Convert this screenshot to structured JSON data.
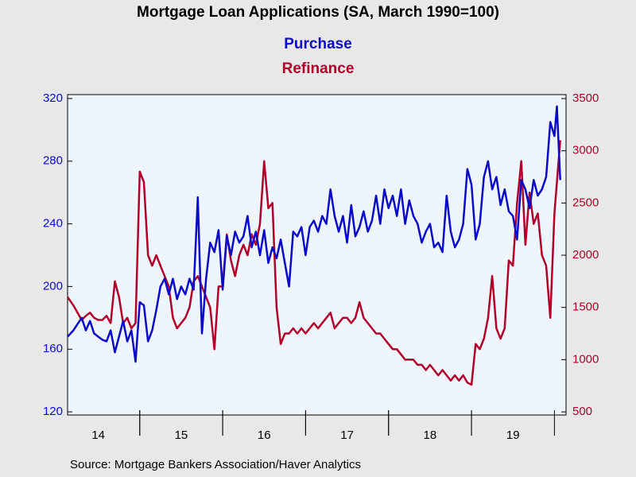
{
  "chart_data": {
    "type": "line",
    "title": "Mortgage Loan Applications (SA, March 1990=100)",
    "source": "Source:  Mortgage Bankers Association/Haver Analytics",
    "x": [
      2014.13,
      2014.2,
      2014.25,
      2014.3,
      2014.35,
      2014.4,
      2014.45,
      2014.5,
      2014.55,
      2014.6,
      2014.65,
      2014.7,
      2014.75,
      2014.8,
      2014.85,
      2014.9,
      2014.95,
      2015.0,
      2015.05,
      2015.1,
      2015.15,
      2015.2,
      2015.25,
      2015.3,
      2015.35,
      2015.4,
      2015.45,
      2015.5,
      2015.55,
      2015.6,
      2015.65,
      2015.7,
      2015.75,
      2015.8,
      2015.85,
      2015.9,
      2015.95,
      2016.0,
      2016.05,
      2016.1,
      2016.15,
      2016.2,
      2016.25,
      2016.3,
      2016.35,
      2016.4,
      2016.45,
      2016.5,
      2016.55,
      2016.6,
      2016.65,
      2016.7,
      2016.75,
      2016.8,
      2016.85,
      2016.9,
      2016.95,
      2017.0,
      2017.05,
      2017.1,
      2017.15,
      2017.2,
      2017.25,
      2017.3,
      2017.35,
      2017.4,
      2017.45,
      2017.5,
      2017.55,
      2017.6,
      2017.65,
      2017.7,
      2017.75,
      2017.8,
      2017.85,
      2017.9,
      2017.95,
      2018.0,
      2018.05,
      2018.1,
      2018.15,
      2018.2,
      2018.25,
      2018.3,
      2018.35,
      2018.4,
      2018.45,
      2018.5,
      2018.55,
      2018.6,
      2018.65,
      2018.7,
      2018.75,
      2018.8,
      2018.85,
      2018.9,
      2018.95,
      2019.0,
      2019.05,
      2019.1,
      2019.15,
      2019.2,
      2019.25,
      2019.3,
      2019.35,
      2019.4,
      2019.45,
      2019.5,
      2019.55,
      2019.6,
      2019.65,
      2019.7,
      2019.75,
      2019.8,
      2019.85,
      2019.9,
      2019.95,
      2020.0,
      2020.03,
      2020.07
    ],
    "series": [
      {
        "name": "Purchase",
        "color": "#0a0ac8",
        "values": [
          168,
          172,
          176,
          180,
          172,
          178,
          170,
          168,
          166,
          165,
          172,
          158,
          168,
          178,
          165,
          172,
          152,
          190,
          188,
          165,
          172,
          185,
          200,
          205,
          195,
          205,
          192,
          200,
          195,
          205,
          198,
          257,
          170,
          205,
          228,
          222,
          236,
          198,
          232,
          220,
          235,
          228,
          232,
          245,
          225,
          235,
          220,
          236,
          215,
          225,
          218,
          230,
          215,
          200,
          235,
          232,
          238,
          220,
          238,
          242,
          235,
          245,
          240,
          262,
          245,
          235,
          245,
          228,
          252,
          232,
          238,
          248,
          235,
          242,
          258,
          240,
          262,
          250,
          258,
          245,
          262,
          240,
          255,
          245,
          240,
          228,
          235,
          240,
          225,
          228,
          222,
          258,
          235,
          225,
          230,
          240,
          275,
          265,
          230,
          240,
          270,
          280,
          262,
          270,
          252,
          262,
          248,
          245,
          230,
          268,
          262,
          250,
          268,
          258,
          262,
          270,
          305,
          296,
          315,
          268
        ]
      },
      {
        "name": "Refinance",
        "color": "#b0002a",
        "axis": "y2",
        "values": [
          1600,
          1520,
          1450,
          1380,
          1420,
          1450,
          1400,
          1380,
          1380,
          1420,
          1350,
          1750,
          1600,
          1350,
          1400,
          1300,
          1350,
          2800,
          2700,
          2000,
          1900,
          2000,
          1900,
          1800,
          1700,
          1400,
          1300,
          1350,
          1400,
          1500,
          1750,
          1800,
          1700,
          1600,
          1500,
          1100,
          1700,
          1700,
          2200,
          1950,
          1800,
          2000,
          2100,
          2000,
          2200,
          2100,
          2300,
          2900,
          2450,
          2500,
          1500,
          1150,
          1250,
          1250,
          1300,
          1250,
          1300,
          1250,
          1300,
          1350,
          1300,
          1350,
          1400,
          1450,
          1300,
          1350,
          1400,
          1400,
          1350,
          1400,
          1550,
          1400,
          1350,
          1300,
          1250,
          1250,
          1200,
          1150,
          1100,
          1100,
          1050,
          1000,
          1000,
          1000,
          950,
          950,
          900,
          950,
          900,
          850,
          900,
          850,
          800,
          850,
          800,
          850,
          780,
          760,
          1150,
          1100,
          1200,
          1400,
          1800,
          1300,
          1200,
          1300,
          1950,
          1900,
          2500,
          2900,
          2100,
          2600,
          2300,
          2400,
          2000,
          1900,
          1400,
          2400,
          2700,
          3100
        ]
      }
    ],
    "xlim": [
      2014.13,
      2020.14
    ],
    "xticks": [
      {
        "value": 2014.5,
        "label": "14"
      },
      {
        "value": 2015.5,
        "label": "15"
      },
      {
        "value": 2016.5,
        "label": "16"
      },
      {
        "value": 2017.5,
        "label": "17"
      },
      {
        "value": 2018.5,
        "label": "18"
      },
      {
        "value": 2019.5,
        "label": "19"
      }
    ],
    "ylim": [
      118,
      322.5
    ],
    "yticks": [
      120,
      160,
      200,
      240,
      280,
      320
    ],
    "y2lim": [
      470,
      3538
    ],
    "y2ticks": [
      500,
      1000,
      1500,
      2000,
      2500,
      3000,
      3500
    ]
  }
}
